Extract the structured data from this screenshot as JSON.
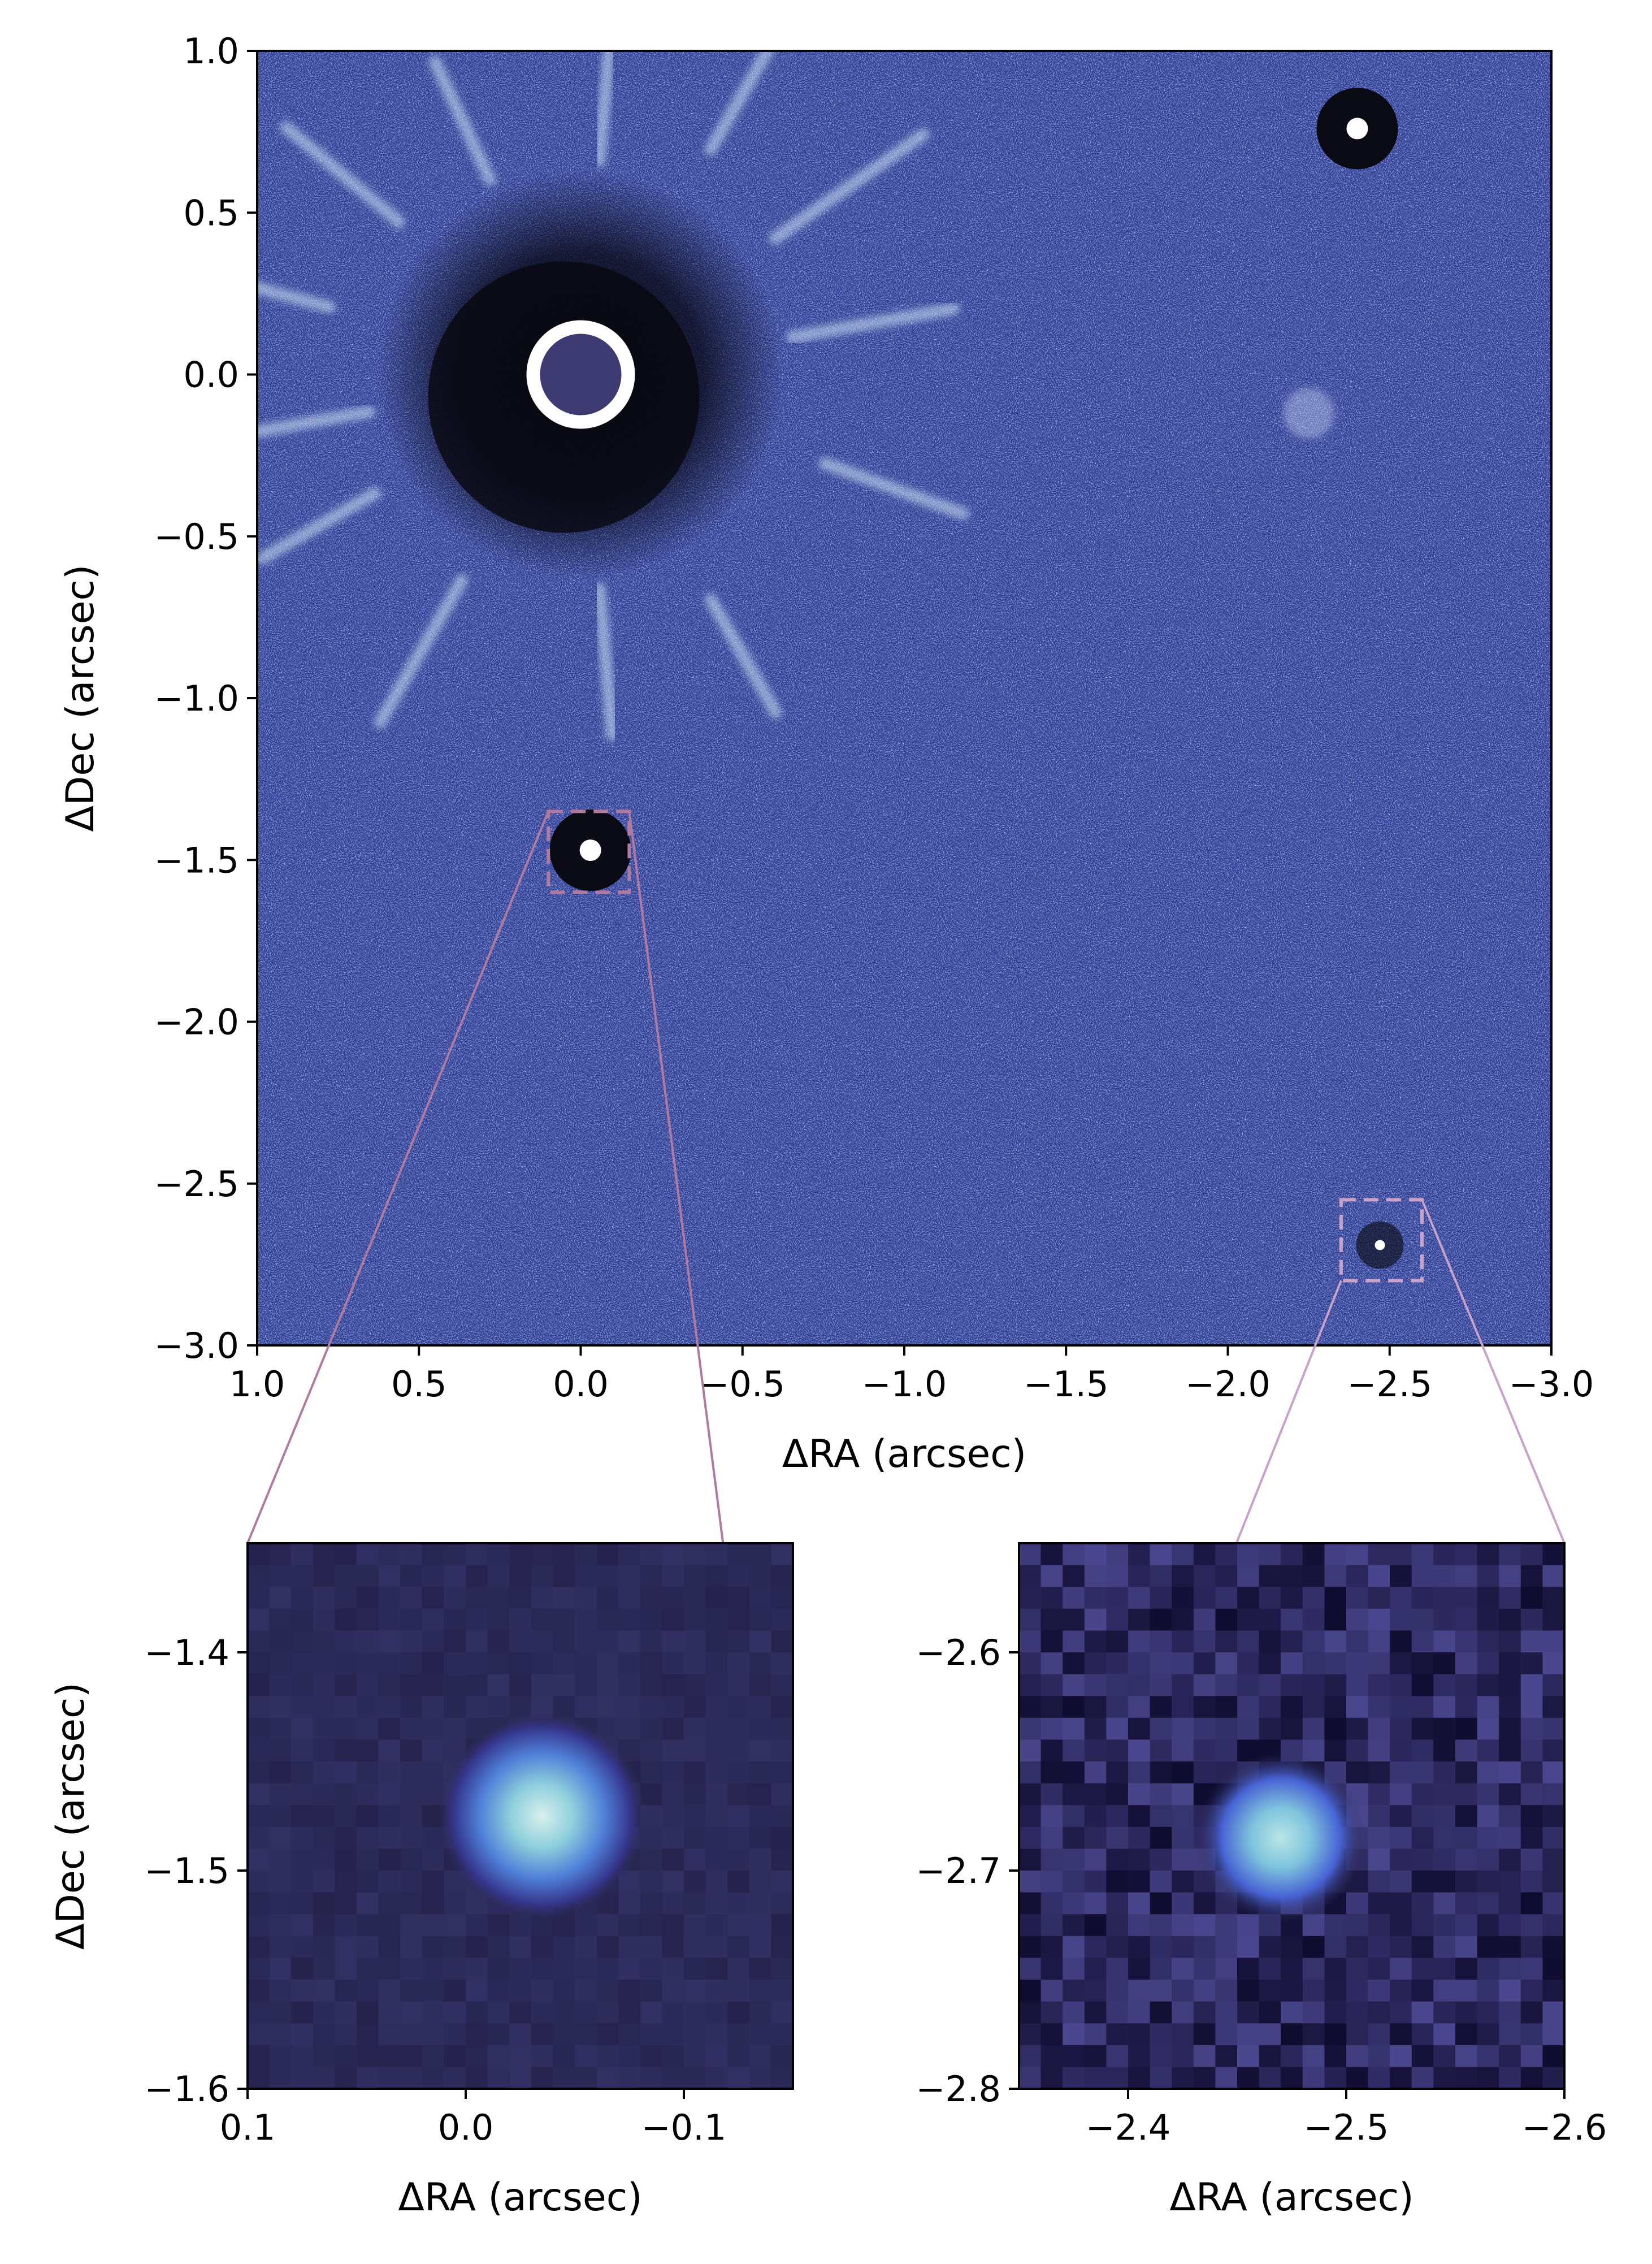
{
  "figure": {
    "main_panel": {
      "xlabel": "ΔRA (arcsec)",
      "ylabel": "ΔDec (arcsec)",
      "xlim": [
        1.0,
        -3.0
      ],
      "ylim": [
        -3.0,
        1.0
      ],
      "xticks": [
        {
          "value": 1.0,
          "label": "1.0"
        },
        {
          "value": 0.5,
          "label": "0.5"
        },
        {
          "value": 0.0,
          "label": "0.0"
        },
        {
          "value": -0.5,
          "label": "−0.5"
        },
        {
          "value": -1.0,
          "label": "−1.0"
        },
        {
          "value": -1.5,
          "label": "−1.5"
        },
        {
          "value": -2.0,
          "label": "−2.0"
        },
        {
          "value": -2.5,
          "label": "−2.5"
        },
        {
          "value": -3.0,
          "label": "−3.0"
        }
      ],
      "yticks": [
        {
          "value": 1.0,
          "label": "1.0"
        },
        {
          "value": 0.5,
          "label": "0.5"
        },
        {
          "value": 0.0,
          "label": "0.0"
        },
        {
          "value": -0.5,
          "label": "−0.5"
        },
        {
          "value": -1.0,
          "label": "−1.0"
        },
        {
          "value": -1.5,
          "label": "−1.5"
        },
        {
          "value": -2.0,
          "label": "−2.0"
        },
        {
          "value": -2.5,
          "label": "−2.5"
        },
        {
          "value": -3.0,
          "label": "−3.0"
        }
      ],
      "sources": [
        {
          "ra": 0.0,
          "dec": 0.0,
          "kind": "masked-host-star"
        },
        {
          "ra": -2.4,
          "dec": 0.76,
          "kind": "point-source"
        },
        {
          "ra": -0.03,
          "dec": -1.47,
          "kind": "point-source"
        },
        {
          "ra": -2.47,
          "dec": -2.69,
          "kind": "faint-point-source"
        }
      ]
    },
    "inset_left": {
      "xlabel": "ΔRA (arcsec)",
      "ylabel": "ΔDec (arcsec)",
      "xlim": [
        0.1,
        -0.15
      ],
      "ylim": [
        -1.6,
        -1.35
      ],
      "xticks": [
        {
          "value": 0.1,
          "label": "0.1"
        },
        {
          "value": 0.0,
          "label": "0.0"
        },
        {
          "value": -0.1,
          "label": "−0.1"
        }
      ],
      "yticks": [
        {
          "value": -1.4,
          "label": "−1.4"
        },
        {
          "value": -1.5,
          "label": "−1.5"
        },
        {
          "value": -1.6,
          "label": "−1.6"
        }
      ],
      "source": {
        "ra": -0.035,
        "dec": -1.475
      }
    },
    "inset_right": {
      "xlabel": "ΔRA (arcsec)",
      "ylabel": "",
      "xlim": [
        -2.35,
        -2.6
      ],
      "ylim": [
        -2.8,
        -2.55
      ],
      "xticks": [
        {
          "value": -2.4,
          "label": "−2.4"
        },
        {
          "value": -2.5,
          "label": "−2.5"
        },
        {
          "value": -2.6,
          "label": "−2.6"
        }
      ],
      "yticks": [
        {
          "value": -2.6,
          "label": "−2.6"
        },
        {
          "value": -2.7,
          "label": "−2.7"
        },
        {
          "value": -2.8,
          "label": "−2.8"
        }
      ],
      "source": {
        "ra": -2.47,
        "dec": -2.685
      }
    },
    "colors": {
      "background_image": "#3b4fc0",
      "inset_background": "#2b2a52",
      "zoom_box_left": "#b07aa1",
      "zoom_box_right": "#c8a2c8",
      "point_source": "#ffffff",
      "psf_core": "#d8f0ee"
    },
    "colormap": "dark-blue-to-white"
  }
}
